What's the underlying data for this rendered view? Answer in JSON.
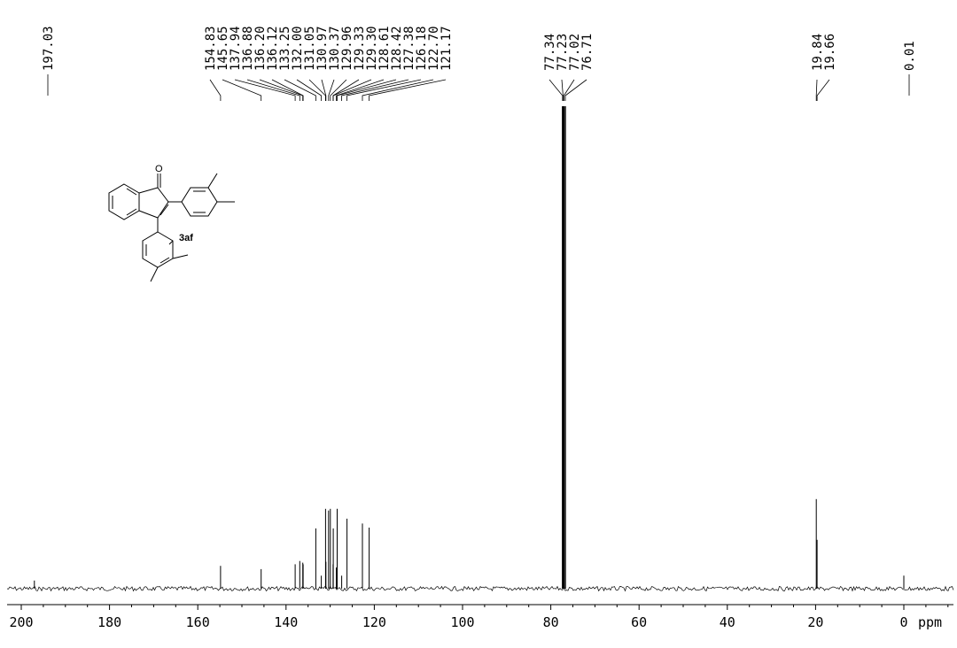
{
  "chart_data": {
    "type": "line",
    "title": "",
    "xlabel": "ppm",
    "ylabel": "",
    "xlim": [
      200,
      0
    ],
    "x_reversed": true,
    "x_ticks": [
      "200",
      "180",
      "160",
      "140",
      "120",
      "100",
      "80",
      "60",
      "40",
      "20",
      "0"
    ],
    "x_unit_label": "ppm",
    "compound_label": "3af",
    "peaks": [
      {
        "shift": 197.03,
        "label": "197.03",
        "intensity": 0.1
      },
      {
        "shift": 154.83,
        "label": "154.83",
        "intensity": 0.28
      },
      {
        "shift": 145.65,
        "label": "145.65",
        "intensity": 0.24
      },
      {
        "shift": 137.94,
        "label": "137.94",
        "intensity": 0.3
      },
      {
        "shift": 136.88,
        "label": "136.88",
        "intensity": 0.34
      },
      {
        "shift": 136.2,
        "label": "136.20",
        "intensity": 0.32
      },
      {
        "shift": 136.12,
        "label": "136.12",
        "intensity": 0.3
      },
      {
        "shift": 133.25,
        "label": "133.25",
        "intensity": 0.74
      },
      {
        "shift": 132.0,
        "label": "132.00",
        "intensity": 0.16
      },
      {
        "shift": 131.05,
        "label": "131.05",
        "intensity": 0.98
      },
      {
        "shift": 130.97,
        "label": "130.97",
        "intensity": 0.33
      },
      {
        "shift": 130.37,
        "label": "130.37",
        "intensity": 0.96
      },
      {
        "shift": 129.96,
        "label": "129.96",
        "intensity": 0.98
      },
      {
        "shift": 129.33,
        "label": "129.33",
        "intensity": 0.3
      },
      {
        "shift": 129.3,
        "label": "129.30",
        "intensity": 0.74
      },
      {
        "shift": 128.61,
        "label": "128.61",
        "intensity": 0.26
      },
      {
        "shift": 128.42,
        "label": "128.42",
        "intensity": 0.98
      },
      {
        "shift": 127.38,
        "label": "127.38",
        "intensity": 0.16
      },
      {
        "shift": 126.18,
        "label": "126.18",
        "intensity": 0.86
      },
      {
        "shift": 122.7,
        "label": "122.70",
        "intensity": 0.8
      },
      {
        "shift": 121.17,
        "label": "121.17",
        "intensity": 0.75
      },
      {
        "shift": 77.34,
        "label": "77.34",
        "intensity": 10
      },
      {
        "shift": 77.23,
        "label": "77.23",
        "intensity": 10
      },
      {
        "shift": 77.02,
        "label": "77.02",
        "intensity": 10
      },
      {
        "shift": 76.71,
        "label": "76.71",
        "intensity": 10
      },
      {
        "shift": 19.84,
        "label": "19.84",
        "intensity": 1.1
      },
      {
        "shift": 19.66,
        "label": "19.66",
        "intensity": 0.6
      },
      {
        "shift": 0.01,
        "label": "0.01",
        "intensity": 0.16
      }
    ],
    "peak_label_groups": [
      {
        "labels": [
          "197.03"
        ]
      },
      {
        "labels": [
          "154.83",
          "145.65",
          "137.94",
          "136.88",
          "136.20",
          "136.12",
          "133.25",
          "132.00",
          "131.05",
          "130.97",
          "130.37",
          "129.96",
          "129.33",
          "129.30",
          "128.61",
          "128.42",
          "127.38",
          "126.18",
          "122.70",
          "121.17"
        ]
      },
      {
        "labels": [
          "77.34",
          "77.23",
          "77.02",
          "76.71"
        ]
      },
      {
        "labels": [
          "19.84",
          "19.66"
        ]
      },
      {
        "labels": [
          "0.01"
        ]
      }
    ],
    "grid": false,
    "legend": "none"
  }
}
